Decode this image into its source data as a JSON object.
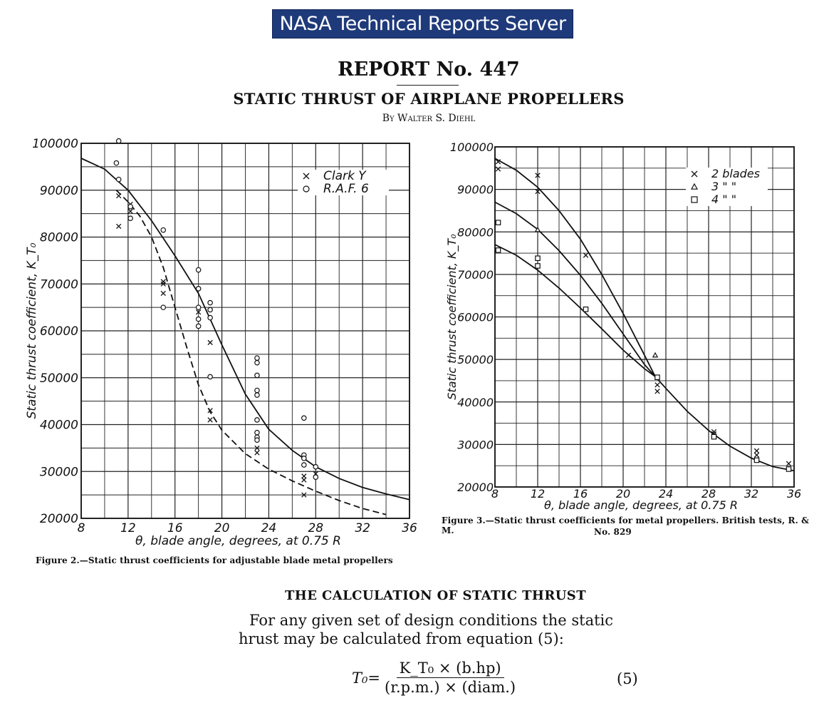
{
  "header": {
    "site_name": "NASA Technical Reports Server"
  },
  "report": {
    "number": "REPORT No. 447",
    "title": "STATIC THRUST OF AIRPLANE PROPELLERS",
    "author": "By Walter S. Diehl"
  },
  "figures": [
    {
      "caption": "Figure 2.—Static thrust coefficients for adjustable blade metal propellers"
    },
    {
      "caption_line1": "Figure 3.—Static thrust coefficients for metal propellers.  British tests, R. & M.",
      "caption_line2": "No. 829"
    }
  ],
  "section": {
    "heading": "THE CALCULATION OF STATIC THRUST",
    "line1": "For any given set of design conditions the static",
    "line2": "hrust may be calculated from equation (5):",
    "equation_lhs": "T₀=",
    "equation_numerator": "K_T₀ × (b.hp)",
    "equation_denominator": "(r.p.m.) × (diam.)",
    "equation_number": "(5)"
  },
  "chart_data": [
    {
      "type": "scatter",
      "xlabel": "θ, blade angle, degrees, at 0.75 R",
      "ylabel": "Static thrust coefficient, K_T₀",
      "xlim": [
        8,
        36
      ],
      "ylim": [
        20000,
        100000
      ],
      "x_ticks": [
        8,
        12,
        16,
        20,
        24,
        28,
        32,
        36
      ],
      "y_ticks": [
        20000,
        30000,
        40000,
        50000,
        60000,
        70000,
        80000,
        90000,
        100000
      ],
      "grid": true,
      "legend_position": "top-right",
      "series": [
        {
          "name": "Clark Y",
          "marker": "x",
          "points": [
            [
              11.2,
              88800
            ],
            [
              11.2,
              82300
            ],
            [
              12.2,
              87000
            ],
            [
              12.2,
              85500
            ],
            [
              15.0,
              70500
            ],
            [
              15.0,
              68000
            ],
            [
              15.0,
              70000
            ],
            [
              18.0,
              64000
            ],
            [
              19.0,
              57500
            ],
            [
              19.0,
              43000
            ],
            [
              19.0,
              41000
            ],
            [
              23.0,
              35000
            ],
            [
              23.0,
              34000
            ],
            [
              27.0,
              29000
            ],
            [
              27.0,
              28200
            ],
            [
              27.0,
              25000
            ],
            [
              28.0,
              29500
            ]
          ]
        },
        {
          "name": "R.A.F. 6",
          "marker": "o",
          "points": [
            [
              11.2,
              100500
            ],
            [
              11.0,
              95800
            ],
            [
              11.2,
              92300
            ],
            [
              12.2,
              86500
            ],
            [
              12.2,
              84000
            ],
            [
              15.0,
              81500
            ],
            [
              15.0,
              65000
            ],
            [
              18.0,
              73000
            ],
            [
              18.0,
              69000
            ],
            [
              18.0,
              65000
            ],
            [
              18.0,
              62500
            ],
            [
              18.0,
              61000
            ],
            [
              19.0,
              66000
            ],
            [
              19.0,
              64500
            ],
            [
              19.0,
              62800
            ],
            [
              19.0,
              50200
            ],
            [
              23.0,
              54200
            ],
            [
              23.0,
              53200
            ],
            [
              23.0,
              50500
            ],
            [
              23.0,
              47300
            ],
            [
              23.0,
              46300
            ],
            [
              23.0,
              41000
            ],
            [
              23.0,
              38300
            ],
            [
              23.0,
              37300
            ],
            [
              23.0,
              36700
            ],
            [
              27.0,
              41400
            ],
            [
              27.0,
              33500
            ],
            [
              27.0,
              32800
            ],
            [
              27.0,
              31400
            ],
            [
              28.0,
              31000
            ],
            [
              28.0,
              28800
            ]
          ]
        }
      ],
      "curves": [
        {
          "style": "solid",
          "points": [
            [
              8,
              96800
            ],
            [
              10,
              94500
            ],
            [
              12,
              90000
            ],
            [
              14,
              83500
            ],
            [
              16,
              76000
            ],
            [
              18,
              68000
            ],
            [
              20,
              57000
            ],
            [
              22,
              46500
            ],
            [
              24,
              39000
            ],
            [
              26,
              34500
            ],
            [
              28,
              31000
            ],
            [
              30,
              28500
            ],
            [
              32,
              26600
            ],
            [
              34,
              25200
            ],
            [
              36,
              24000
            ]
          ]
        },
        {
          "style": "dashed",
          "points": [
            [
              11,
              90000
            ],
            [
              12,
              87500
            ],
            [
              13,
              84500
            ],
            [
              14,
              80000
            ],
            [
              15,
              73500
            ],
            [
              16,
              65000
            ],
            [
              17,
              56500
            ],
            [
              18,
              48500
            ],
            [
              19,
              42700
            ],
            [
              20,
              38800
            ],
            [
              22,
              33800
            ],
            [
              24,
              30500
            ],
            [
              26,
              28000
            ],
            [
              28,
              25800
            ],
            [
              30,
              23800
            ],
            [
              32,
              22100
            ],
            [
              34,
              20800
            ]
          ]
        }
      ]
    },
    {
      "type": "scatter",
      "xlabel": "θ, blade angle, degrees, at 0.75 R",
      "ylabel": "Static thrust coefficient, K_T₀",
      "xlim": [
        8,
        36
      ],
      "ylim": [
        20000,
        100000
      ],
      "x_ticks": [
        8,
        12,
        16,
        20,
        24,
        28,
        32,
        36
      ],
      "y_ticks": [
        20000,
        30000,
        40000,
        50000,
        60000,
        70000,
        80000,
        90000,
        100000
      ],
      "grid": true,
      "legend_position": "top-right",
      "series": [
        {
          "name": "2 blades",
          "marker": "x",
          "points": [
            [
              8.3,
              94800
            ],
            [
              8.3,
              96500
            ],
            [
              12,
              89500
            ],
            [
              12,
              93300
            ],
            [
              16.5,
              74500
            ],
            [
              20.5,
              51000
            ],
            [
              23.2,
              44000
            ],
            [
              23.2,
              42500
            ],
            [
              28.5,
              32500
            ],
            [
              28.5,
              33000
            ],
            [
              32.5,
              28500
            ],
            [
              32.5,
              27500
            ],
            [
              35.5,
              25500
            ]
          ]
        },
        {
          "name": "3 \" \"",
          "marker": "triangle",
          "points": [
            [
              12,
              80500
            ],
            [
              23,
              51000
            ]
          ]
        },
        {
          "name": "4 \" \"",
          "marker": "square",
          "points": [
            [
              8.3,
              82200
            ],
            [
              8.3,
              75700
            ],
            [
              12,
              73800
            ],
            [
              12,
              72000
            ],
            [
              16.5,
              61800
            ],
            [
              23.2,
              45800
            ],
            [
              28.5,
              31800
            ],
            [
              32.5,
              26300
            ],
            [
              35.5,
              24200
            ]
          ]
        }
      ],
      "curves": [
        {
          "style": "solid",
          "points": [
            [
              8,
              97300
            ],
            [
              10,
              94500
            ],
            [
              12,
              90500
            ],
            [
              14,
              85000
            ],
            [
              16,
              78300
            ],
            [
              18,
              70000
            ],
            [
              20,
              60800
            ],
            [
              22,
              51000
            ],
            [
              23,
              46000
            ]
          ]
        },
        {
          "style": "solid",
          "points": [
            [
              8,
              87000
            ],
            [
              10,
              84300
            ],
            [
              12,
              80600
            ],
            [
              14,
              75600
            ],
            [
              16,
              69800
            ],
            [
              18,
              63200
            ],
            [
              20,
              56000
            ],
            [
              22,
              48800
            ],
            [
              23,
              46000
            ]
          ]
        },
        {
          "style": "solid",
          "points": [
            [
              8,
              77000
            ],
            [
              10,
              74500
            ],
            [
              12,
              71000
            ],
            [
              14,
              66800
            ],
            [
              16,
              62100
            ],
            [
              18,
              57200
            ],
            [
              20,
              52200
            ],
            [
              22,
              47800
            ],
            [
              23,
              46000
            ],
            [
              24,
              43200
            ],
            [
              26,
              37800
            ],
            [
              28,
              33300
            ],
            [
              30,
              29600
            ],
            [
              32,
              26800
            ],
            [
              34,
              24800
            ],
            [
              36,
              23800
            ]
          ]
        }
      ]
    }
  ]
}
